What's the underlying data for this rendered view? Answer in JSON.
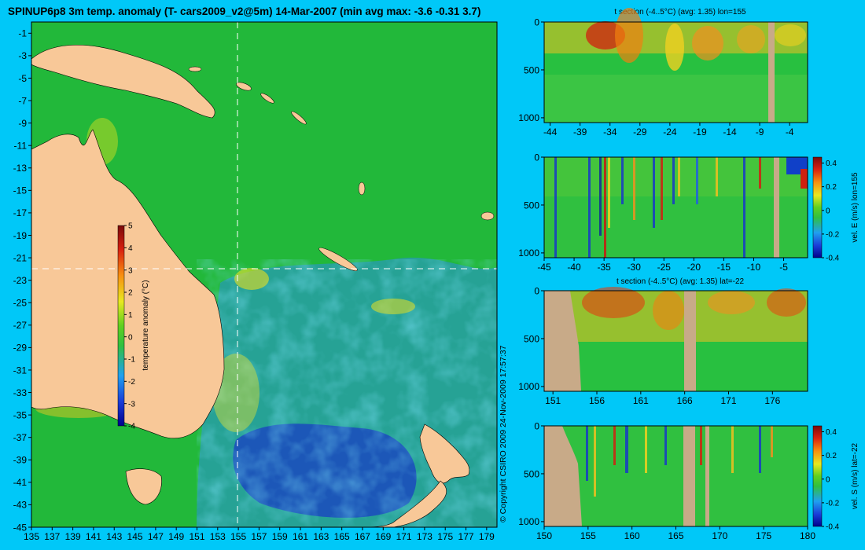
{
  "title": "SPINUP6p8 3m temp. anomaly (T- cars2009_v2@5m) 14-Mar-2007 (min avg max: -3.6 -0.31 3.7)",
  "copyright": "© Copyright CSIRO 2009   24-Nov-2009 17:57:37",
  "colors": {
    "background": "#00c8f8",
    "land": "#f8c898",
    "section_land": "#c8aa88",
    "ocean_mid": "#22b83a"
  },
  "chart_data": [
    {
      "type": "heatmap",
      "name": "map",
      "xlim": [
        135,
        180
      ],
      "ylim": [
        -45,
        0
      ],
      "x_ticks": [
        "135",
        "137",
        "139",
        "141",
        "143",
        "145",
        "147",
        "149",
        "151",
        "153",
        "155",
        "157",
        "159",
        "161",
        "163",
        "165",
        "167",
        "169",
        "171",
        "173",
        "175",
        "177",
        "179"
      ],
      "y_ticks": [
        "-1",
        "-3",
        "-5",
        "-7",
        "-9",
        "-11",
        "-13",
        "-15",
        "-17",
        "-19",
        "-21",
        "-23",
        "-25",
        "-27",
        "-29",
        "-31",
        "-33",
        "-35",
        "-37",
        "-39",
        "-41",
        "-43",
        "-45"
      ],
      "section_lon": 155,
      "section_lat": -22,
      "colorbar": {
        "label": "temperature anomaly (°C)",
        "range": [
          -4,
          5
        ],
        "ticks": [
          "5",
          "4",
          "3",
          "2",
          "1",
          "0",
          "-1",
          "-2",
          "-3",
          "-4"
        ]
      }
    },
    {
      "type": "heatmap",
      "name": "t-section-lon",
      "title": "t section (-4..5°C) (avg: 1.35) lon=155",
      "xlim": [
        -45,
        -1
      ],
      "ylim": [
        1050,
        0
      ],
      "x_ticks": [
        "-44",
        "-39",
        "-34",
        "-29",
        "-24",
        "-19",
        "-14",
        "-9",
        "-4"
      ],
      "y_ticks": [
        "0",
        "500",
        "1000"
      ]
    },
    {
      "type": "heatmap",
      "name": "vel-east-lon",
      "xlim": [
        -45,
        -1
      ],
      "ylim": [
        1050,
        0
      ],
      "x_ticks": [
        "-45",
        "-40",
        "-35",
        "-30",
        "-25",
        "-20",
        "-15",
        "-10",
        "-5"
      ],
      "y_ticks": [
        "0",
        "500",
        "1000"
      ],
      "colorbar": {
        "label": "vel. E (m/s) lon=155",
        "range": [
          -0.4,
          0.45
        ],
        "ticks": [
          "0.4",
          "0.2",
          "0",
          "-0.2",
          "-0.4"
        ]
      }
    },
    {
      "type": "heatmap",
      "name": "t-section-lat",
      "title": "t section (-4..5°C) (avg: 1.35) lat=-22",
      "xlim": [
        150,
        180
      ],
      "ylim": [
        1050,
        0
      ],
      "x_ticks": [
        "151",
        "156",
        "161",
        "166",
        "171",
        "176"
      ],
      "y_ticks": [
        "0",
        "500",
        "1000"
      ]
    },
    {
      "type": "heatmap",
      "name": "vel-south-lat",
      "xlim": [
        150,
        180
      ],
      "ylim": [
        1050,
        0
      ],
      "x_ticks": [
        "150",
        "155",
        "160",
        "165",
        "170",
        "175",
        "180"
      ],
      "y_ticks": [
        "0",
        "500",
        "1000"
      ],
      "colorbar": {
        "label": "vel. S (m/s) lat=-22",
        "range": [
          -0.4,
          0.45
        ],
        "ticks": [
          "0.4",
          "0.2",
          "0",
          "-0.2",
          "-0.4"
        ]
      }
    }
  ]
}
